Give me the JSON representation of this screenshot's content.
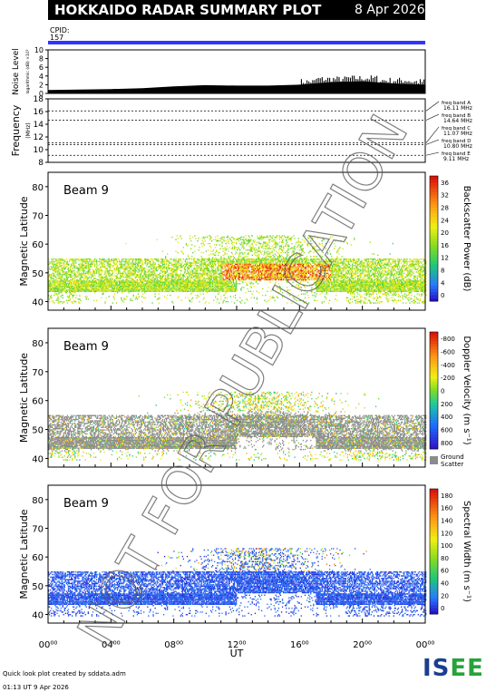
{
  "header": {
    "title": "HOKKAIDO RADAR SUMMARY PLOT",
    "date": "8 Apr 2026"
  },
  "cpid": {
    "label": "CPID:",
    "value": "157",
    "bar_color": "#3333ff"
  },
  "noise": {
    "ylabel": "Noise Level",
    "yunits": "logarithmic (dB) ×10²",
    "ticks": [
      "0",
      "2",
      "4",
      "6",
      "8",
      "10"
    ]
  },
  "freq": {
    "ylabel": "Frequency",
    "yunits": "(MHz)",
    "ticks": [
      "8",
      "10",
      "12",
      "14",
      "16",
      "18"
    ],
    "bands": [
      {
        "name": "freq band A",
        "value": "16.11 MHz"
      },
      {
        "name": "freq band B",
        "value": "14.64 MHz"
      },
      {
        "name": "freq band C",
        "value": "11.07 MHz"
      },
      {
        "name": "freq band D",
        "value": "10.80 MHz"
      },
      {
        "name": "freq band E",
        "value": "9.11 MHz"
      }
    ]
  },
  "panels": [
    {
      "beam_label": "Beam  9",
      "ylabel": "Magnetic Latitude",
      "colorbar_label": "Backscatter Power (dB)",
      "colorbar_ticks": [
        "0",
        "4",
        "8",
        "12",
        "16",
        "20",
        "24",
        "28",
        "32",
        "36"
      ]
    },
    {
      "beam_label": "Beam  9",
      "ylabel": "Magnetic Latitude",
      "colorbar_label": "Doppler Velocity (m s⁻¹)",
      "colorbar_ticks": [
        "800",
        "600",
        "400",
        "200",
        "0",
        "-200",
        "-400",
        "-600",
        "-800"
      ],
      "ground_label": "Ground",
      "scatter_label": "Scatter"
    },
    {
      "beam_label": "Beam  9",
      "ylabel": "Magnetic Latitude",
      "colorbar_label": "Spectral Width (m s⁻¹)",
      "colorbar_ticks": [
        "0",
        "20",
        "40",
        "60",
        "80",
        "100",
        "120",
        "140",
        "160",
        "180"
      ]
    }
  ],
  "xaxis": {
    "label": "UT",
    "ticks": [
      "00⁰⁰",
      "04⁰⁰",
      "08⁰⁰",
      "12⁰⁰",
      "16⁰⁰",
      "20⁰⁰",
      "00⁰⁰"
    ]
  },
  "watermark": "NOT FOR PUBLICATION",
  "footer": {
    "line1": "Quick look plot created by sddata.adm",
    "line2": "01:13 UT  9 Apr 2026"
  },
  "logo": {
    "part1": "IS",
    "part2": "EE"
  },
  "chart_data": [
    {
      "type": "area",
      "title": "Noise Level",
      "x_range_hours": [
        0,
        24
      ],
      "ylim": [
        0,
        10
      ],
      "x": [
        0,
        2,
        4,
        6,
        8,
        10,
        12,
        14,
        16,
        18,
        20,
        22,
        24
      ],
      "y": [
        0.8,
        0.9,
        1.0,
        1.2,
        1.6,
        1.9,
        1.8,
        1.8,
        2.0,
        2.6,
        2.8,
        2.3,
        2.0
      ]
    },
    {
      "type": "line",
      "title": "Frequency",
      "x_range_hours": [
        0,
        24
      ],
      "ylim": [
        8,
        18
      ],
      "series": [
        {
          "name": "freq band A",
          "values": [
            16.11
          ]
        },
        {
          "name": "freq band B",
          "values": [
            14.64
          ]
        },
        {
          "name": "freq band C",
          "values": [
            11.07
          ]
        },
        {
          "name": "freq band D",
          "values": [
            10.8
          ]
        },
        {
          "name": "freq band E",
          "values": [
            9.11
          ]
        }
      ]
    },
    {
      "type": "heatmap",
      "title": "Backscatter Power (dB)",
      "x_range_hours": [
        0,
        24
      ],
      "ylim": [
        37,
        85
      ],
      "clim": [
        0,
        38
      ]
    },
    {
      "type": "heatmap",
      "title": "Doppler Velocity (m s⁻¹)",
      "x_range_hours": [
        0,
        24
      ],
      "ylim": [
        37,
        85
      ],
      "clim": [
        -900,
        900
      ]
    },
    {
      "type": "heatmap",
      "title": "Spectral Width (m s⁻¹)",
      "x_range_hours": [
        0,
        24
      ],
      "ylim": [
        37,
        85
      ],
      "clim": [
        0,
        190
      ]
    }
  ]
}
